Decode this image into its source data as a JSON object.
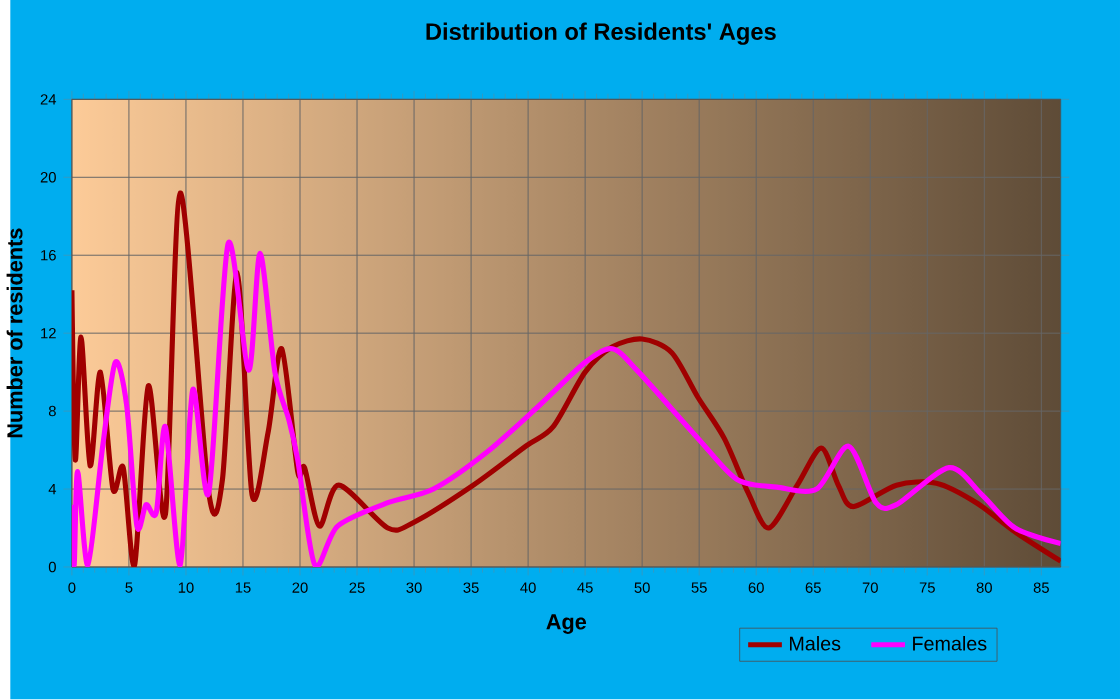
{
  "chart_data": {
    "type": "line",
    "title": "Distribution of Residents' Ages",
    "xlabel": "Age",
    "ylabel": "Number of residents",
    "xlim": [
      0,
      86.7
    ],
    "xticks": [
      0,
      5,
      10,
      15,
      20,
      25,
      30,
      35,
      40,
      45,
      50,
      55,
      60,
      65,
      70,
      75,
      80,
      85
    ],
    "ylim": [
      0,
      24
    ],
    "yticks": [
      0,
      4,
      8,
      12,
      16,
      20,
      24
    ],
    "grid": true,
    "legend": "bottom right",
    "series": [
      {
        "name": "Males",
        "color": "#a00000",
        "x": [
          0,
          0.3,
          0.8,
          1.6,
          2.5,
          3.6,
          4.5,
          5.5,
          6.7,
          8.2,
          9.5,
          12.0,
          13.2,
          14.5,
          15.8,
          17.2,
          18.4,
          19.8,
          20.4,
          21.7,
          23.4,
          27.7,
          30.0,
          35.2,
          39.8,
          42.2,
          45.0,
          47.4,
          50.0,
          52.6,
          54.9,
          57.2,
          59.3,
          61.1,
          63.6,
          65.7,
          67.2,
          68.5,
          72.3,
          75.8,
          79.3,
          82.7,
          86.7
        ],
        "values": [
          14.2,
          5.5,
          11.8,
          5.2,
          10.0,
          4.0,
          5.1,
          0.1,
          9.3,
          2.7,
          19.2,
          3.8,
          4.5,
          15.1,
          3.7,
          6.9,
          11.2,
          4.9,
          5.1,
          2.1,
          4.2,
          2.0,
          2.3,
          4.2,
          6.2,
          7.2,
          10.0,
          11.3,
          11.7,
          11.0,
          8.7,
          6.6,
          3.8,
          2.0,
          4.2,
          6.1,
          4.2,
          3.1,
          4.2,
          4.3,
          3.3,
          1.8,
          0.3
        ]
      },
      {
        "name": "Females",
        "color": "#ff00ff",
        "x": [
          0,
          0.2,
          0.5,
          1.4,
          2.7,
          3.8,
          4.8,
          5.7,
          6.5,
          7.4,
          8.2,
          9.5,
          10.6,
          12.0,
          13.7,
          15.5,
          16.5,
          17.8,
          19.0,
          19.8,
          21.3,
          23.3,
          27.7,
          31.7,
          36.4,
          41.0,
          45.0,
          47.4,
          49.7,
          54.9,
          58.3,
          61.8,
          65.3,
          68.1,
          70.5,
          72.3,
          76.9,
          79.8,
          82.7,
          86.7
        ],
        "values": [
          3.2,
          0.1,
          4.9,
          0.1,
          6.2,
          10.5,
          8.3,
          2.1,
          3.2,
          2.8,
          7.2,
          0.1,
          9.1,
          3.8,
          16.6,
          10.1,
          16.1,
          10.0,
          7.6,
          5.5,
          0.1,
          2.1,
          3.3,
          4.0,
          5.9,
          8.3,
          10.5,
          11.2,
          10.0,
          6.6,
          4.5,
          4.1,
          4.0,
          6.2,
          3.3,
          3.2,
          5.1,
          3.7,
          2.0,
          1.2
        ]
      }
    ]
  }
}
